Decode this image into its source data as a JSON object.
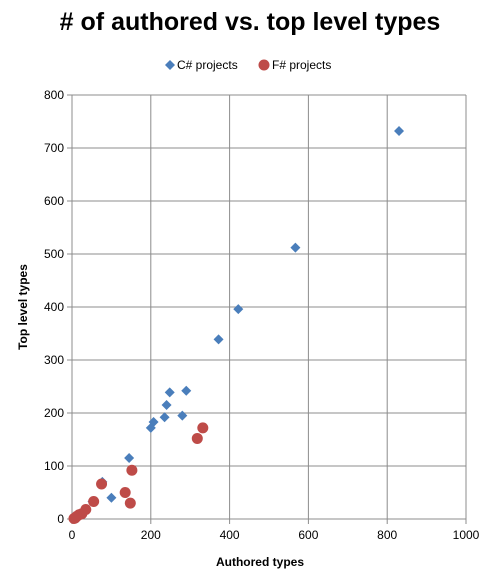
{
  "chart_data": {
    "type": "scatter",
    "title": "# of authored vs. top level types",
    "xlabel": "Authored types",
    "ylabel": "Top level types",
    "xlim": [
      0,
      1000
    ],
    "ylim": [
      0,
      800
    ],
    "xticks": [
      0,
      200,
      400,
      600,
      800,
      1000
    ],
    "yticks": [
      0,
      100,
      200,
      300,
      400,
      500,
      600,
      700,
      800
    ],
    "grid": true,
    "legend_position": "top",
    "series": [
      {
        "name": "C# projects",
        "marker": "diamond",
        "color": "#4a7ebb",
        "points": [
          [
            830,
            732
          ],
          [
            567,
            512
          ],
          [
            422,
            396
          ],
          [
            372,
            339
          ],
          [
            290,
            242
          ],
          [
            280,
            195
          ],
          [
            248,
            239
          ],
          [
            240,
            215
          ],
          [
            235,
            192
          ],
          [
            207,
            183
          ],
          [
            200,
            172
          ],
          [
            145,
            115
          ],
          [
            100,
            40
          ],
          [
            77,
            70
          ],
          [
            52,
            33
          ],
          [
            30,
            15
          ],
          [
            15,
            5
          ]
        ]
      },
      {
        "name": "F# projects",
        "marker": "circle",
        "color": "#be4b48",
        "points": [
          [
            332,
            172
          ],
          [
            318,
            152
          ],
          [
            152,
            92
          ],
          [
            148,
            30
          ],
          [
            135,
            50
          ],
          [
            75,
            66
          ],
          [
            55,
            33
          ],
          [
            35,
            18
          ],
          [
            25,
            10
          ],
          [
            18,
            8
          ],
          [
            12,
            5
          ],
          [
            8,
            2
          ],
          [
            5,
            1
          ]
        ]
      }
    ]
  }
}
